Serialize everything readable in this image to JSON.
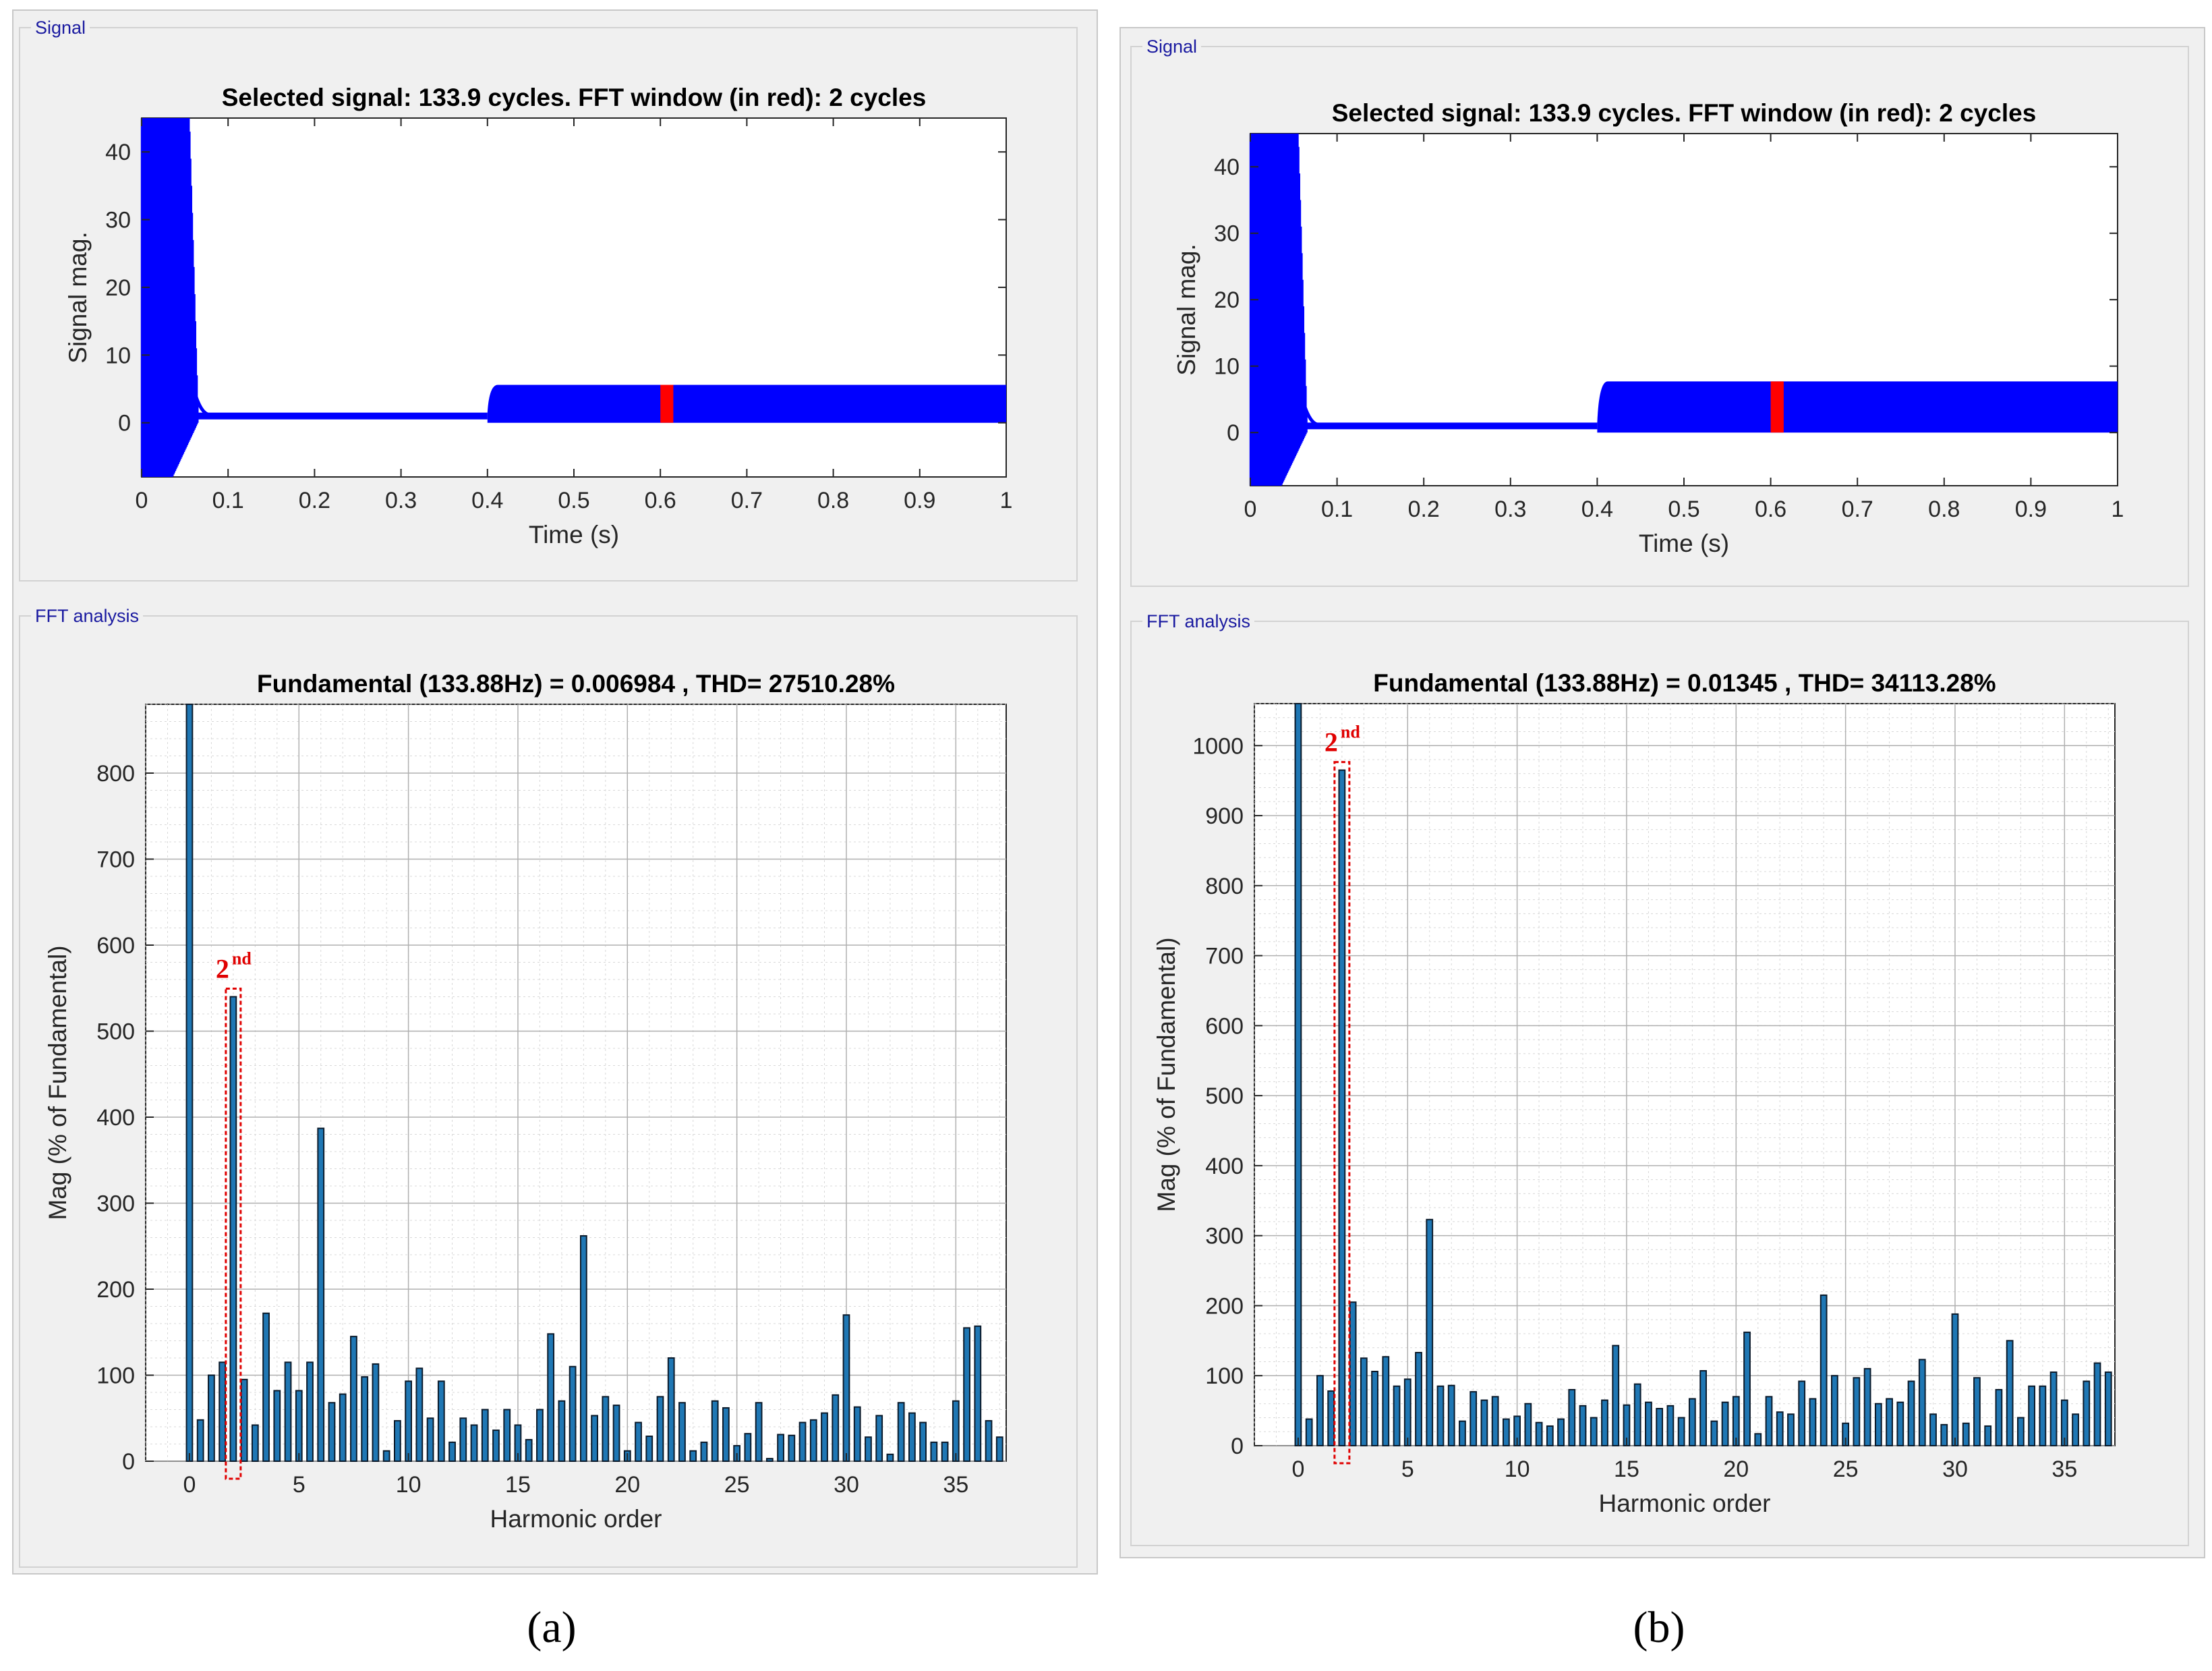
{
  "panels": [
    {
      "caption": "(a)",
      "signal_group_label": "Signal",
      "fft_group_label": "FFT analysis",
      "signal_chart": {
        "type": "line",
        "title": "Selected signal: 133.9 cycles. FFT window (in red): 2 cycles",
        "xlabel": "Time (s)",
        "ylabel": "Signal mag.",
        "xlim": [
          0,
          1
        ],
        "ylim": [
          -8,
          45
        ],
        "xticks": [
          "0",
          "0.1",
          "0.2",
          "0.3",
          "0.4",
          "0.5",
          "0.6",
          "0.7",
          "0.8",
          "0.9",
          "1"
        ],
        "yticks": [
          "0",
          "10",
          "20",
          "30",
          "40"
        ],
        "segments": [
          {
            "name": "startup transient",
            "t_start": 0.0,
            "t_end": 0.065,
            "min": -8,
            "max": 45
          },
          {
            "name": "low level",
            "t_start": 0.065,
            "t_end": 0.4,
            "min": 0.5,
            "max": 1.5
          },
          {
            "name": "steady oscillation",
            "t_start": 0.4,
            "t_end": 1.0,
            "min": 0,
            "max": 5.6
          }
        ],
        "fft_window": {
          "t_start": 0.6,
          "t_end": 0.615,
          "color": "#ff0000"
        },
        "signal_color": "#0000ff"
      },
      "fft_chart": {
        "type": "bar",
        "title": "Fundamental (133.88Hz) = 0.006984 , THD= 27510.28%",
        "xlabel": "Harmonic order",
        "ylabel": "Mag (% of Fundamental)",
        "xlim": [
          -2,
          37.3
        ],
        "ylim": [
          0,
          880
        ],
        "xticks": [
          "0",
          "5",
          "10",
          "15",
          "20",
          "25",
          "30",
          "35"
        ],
        "yticks": [
          "0",
          "100",
          "200",
          "300",
          "400",
          "500",
          "600",
          "700",
          "800"
        ],
        "bar_color": "#1f77b4",
        "annotation": {
          "label": "2",
          "superscript": "nd",
          "harmonic": 2
        },
        "orders": [
          0,
          0.5,
          1,
          1.5,
          2,
          2.5,
          3,
          3.5,
          4,
          4.5,
          5,
          5.5,
          6,
          6.5,
          7,
          7.5,
          8,
          8.5,
          9,
          9.5,
          10,
          10.5,
          11,
          11.5,
          12,
          12.5,
          13,
          13.5,
          14,
          14.5,
          15,
          15.5,
          16,
          16.5,
          17,
          17.5,
          18,
          18.5,
          19,
          19.5,
          20,
          20.5,
          21,
          21.5,
          22,
          22.5,
          23,
          23.5,
          24,
          24.5,
          25,
          25.5,
          26,
          26.5,
          27,
          27.5,
          28,
          28.5,
          29,
          29.5,
          30,
          30.5,
          31,
          31.5,
          32,
          32.5,
          33,
          33.5,
          34,
          34.5,
          35,
          35.5,
          36,
          36.5,
          37
        ],
        "values": [
          880,
          48,
          100,
          115,
          540,
          95,
          42,
          172,
          82,
          115,
          82,
          115,
          387,
          68,
          78,
          145,
          98,
          113,
          12,
          47,
          93,
          108,
          50,
          93,
          22,
          50,
          42,
          60,
          36,
          60,
          42,
          25,
          60,
          148,
          70,
          110,
          262,
          53,
          75,
          65,
          12,
          45,
          29,
          75,
          120,
          68,
          12,
          22,
          70,
          62,
          18,
          32,
          68,
          3,
          31,
          30,
          45,
          48,
          56,
          77,
          170,
          63,
          28,
          53,
          8,
          68,
          56,
          45,
          22,
          22,
          70,
          155,
          157,
          47,
          28
        ]
      }
    },
    {
      "caption": "(b)",
      "signal_group_label": "Signal",
      "fft_group_label": "FFT analysis",
      "signal_chart": {
        "type": "line",
        "title": "Selected signal: 133.9 cycles. FFT window (in red): 2 cycles",
        "xlabel": "Time (s)",
        "ylabel": "Signal mag.",
        "xlim": [
          0,
          1
        ],
        "ylim": [
          -8,
          45
        ],
        "xticks": [
          "0",
          "0.1",
          "0.2",
          "0.3",
          "0.4",
          "0.5",
          "0.6",
          "0.7",
          "0.8",
          "0.9",
          "1"
        ],
        "yticks": [
          "0",
          "10",
          "20",
          "30",
          "40"
        ],
        "segments": [
          {
            "name": "startup transient",
            "t_start": 0.0,
            "t_end": 0.065,
            "min": -8,
            "max": 45
          },
          {
            "name": "low level",
            "t_start": 0.065,
            "t_end": 0.4,
            "min": 0.5,
            "max": 1.5
          },
          {
            "name": "steady oscillation",
            "t_start": 0.4,
            "t_end": 1.0,
            "min": 0,
            "max": 7.7
          }
        ],
        "fft_window": {
          "t_start": 0.6,
          "t_end": 0.615,
          "color": "#ff0000"
        },
        "signal_color": "#0000ff"
      },
      "fft_chart": {
        "type": "bar",
        "title": "Fundamental (133.88Hz) = 0.01345 , THD= 34113.28%",
        "xlabel": "Harmonic order",
        "ylabel": "Mag (% of Fundamental)",
        "xlim": [
          -2,
          37.3
        ],
        "ylim": [
          0,
          1060
        ],
        "xticks": [
          "0",
          "5",
          "10",
          "15",
          "20",
          "25",
          "30",
          "35"
        ],
        "yticks": [
          "0",
          "100",
          "200",
          "300",
          "400",
          "500",
          "600",
          "700",
          "800",
          "900",
          "1000"
        ],
        "bar_color": "#1f77b4",
        "annotation": {
          "label": "2",
          "superscript": "nd",
          "harmonic": 2
        },
        "orders": [
          0,
          0.5,
          1,
          1.5,
          2,
          2.5,
          3,
          3.5,
          4,
          4.5,
          5,
          5.5,
          6,
          6.5,
          7,
          7.5,
          8,
          8.5,
          9,
          9.5,
          10,
          10.5,
          11,
          11.5,
          12,
          12.5,
          13,
          13.5,
          14,
          14.5,
          15,
          15.5,
          16,
          16.5,
          17,
          17.5,
          18,
          18.5,
          19,
          19.5,
          20,
          20.5,
          21,
          21.5,
          22,
          22.5,
          23,
          23.5,
          24,
          24.5,
          25,
          25.5,
          26,
          26.5,
          27,
          27.5,
          28,
          28.5,
          29,
          29.5,
          30,
          30.5,
          31,
          31.5,
          32,
          32.5,
          33,
          33.5,
          34,
          34.5,
          35,
          35.5,
          36,
          36.5,
          37
        ],
        "values": [
          1060,
          38,
          100,
          78,
          965,
          205,
          125,
          106,
          127,
          85,
          95,
          133,
          323,
          85,
          86,
          35,
          77,
          65,
          70,
          38,
          42,
          60,
          33,
          28,
          38,
          80,
          57,
          40,
          65,
          143,
          58,
          88,
          62,
          53,
          57,
          40,
          67,
          107,
          35,
          62,
          70,
          162,
          17,
          70,
          48,
          45,
          92,
          67,
          215,
          100,
          32,
          97,
          110,
          60,
          67,
          62,
          92,
          123,
          45,
          30,
          188,
          32,
          97,
          28,
          80,
          150,
          40,
          85,
          85,
          105,
          65,
          45,
          92,
          118,
          105
        ]
      }
    }
  ]
}
